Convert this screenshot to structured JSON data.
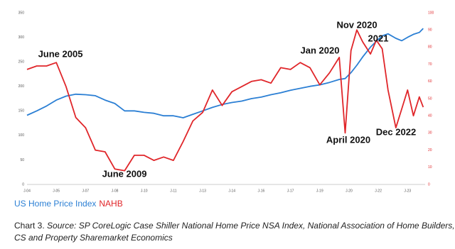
{
  "chart_data": {
    "type": "line",
    "x": [
      2004,
      2004.5,
      2005,
      2005.5,
      2006,
      2006.5,
      2007,
      2007.5,
      2008,
      2008.5,
      2009,
      2009.5,
      2010,
      2010.5,
      2011,
      2011.5,
      2012,
      2012.5,
      2013,
      2013.5,
      2014,
      2014.5,
      2015,
      2015.5,
      2016,
      2016.5,
      2017,
      2017.5,
      2018,
      2018.5,
      2019,
      2019.5,
      2020,
      2020.3,
      2020.6,
      2020.9,
      2021.2,
      2021.6,
      2021.9,
      2022.2,
      2022.5,
      2022.9,
      2023.2,
      2023.5,
      2023.8,
      2024.1,
      2024.3
    ],
    "series": [
      {
        "name": "US Home Price Index",
        "color": "#2b7fd4",
        "axis": "y",
        "values": [
          141,
          150,
          160,
          172,
          180,
          184,
          183,
          181,
          172,
          165,
          150,
          150,
          147,
          145,
          140,
          140,
          136,
          143,
          150,
          157,
          163,
          167,
          170,
          175,
          178,
          183,
          187,
          192,
          196,
          200,
          203,
          208,
          214,
          216,
          228,
          243,
          260,
          280,
          292,
          303,
          307,
          298,
          293,
          300,
          306,
          310,
          318
        ]
      },
      {
        "name": "NAHB",
        "color": "#e0262a",
        "axis": "y2",
        "values": [
          67,
          69,
          69,
          71,
          57,
          39,
          33,
          20,
          19,
          9,
          8,
          17,
          17,
          14,
          16,
          14,
          25,
          37,
          42,
          55,
          46,
          54,
          57,
          60,
          61,
          59,
          68,
          67,
          71,
          68,
          58,
          65,
          74,
          30,
          78,
          90,
          83,
          76,
          84,
          79,
          55,
          33,
          44,
          55,
          40,
          51,
          45
        ]
      }
    ],
    "xlim": [
      2004,
      2024.4
    ],
    "xticks": [
      {
        "value": 2004,
        "label": "J-04"
      },
      {
        "value": 2005.5,
        "label": "J-05"
      },
      {
        "value": 2007,
        "label": "J-07"
      },
      {
        "value": 2008.5,
        "label": "J-08"
      },
      {
        "value": 2010,
        "label": "J-10"
      },
      {
        "value": 2011.5,
        "label": "J-11"
      },
      {
        "value": 2013,
        "label": "J-13"
      },
      {
        "value": 2014.5,
        "label": "J-14"
      },
      {
        "value": 2016,
        "label": "J-16"
      },
      {
        "value": 2017.5,
        "label": "J-17"
      },
      {
        "value": 2019,
        "label": "J-19"
      },
      {
        "value": 2020.5,
        "label": "J-20"
      },
      {
        "value": 2022,
        "label": "J-22"
      },
      {
        "value": 2023.5,
        "label": "J-23"
      }
    ],
    "ylim": [
      0,
      350
    ],
    "yticks": [
      0,
      50,
      100,
      150,
      200,
      250,
      300,
      350
    ],
    "y2lim": [
      0,
      100
    ],
    "y2ticks": [
      0,
      10,
      20,
      30,
      40,
      50,
      60,
      70,
      80,
      90,
      100
    ],
    "annotations": [
      "June 2005",
      "June 2009",
      "Jan 2020",
      "Nov 2020",
      "2021",
      "April 2020",
      "Dec 2022"
    ],
    "caption_label": "Chart 3.",
    "caption_source": "Source: SP CoreLogic Case Shiller National Home Price NSA Index, National Association of Home Builders, CS and Property Sharemarket Economics"
  }
}
